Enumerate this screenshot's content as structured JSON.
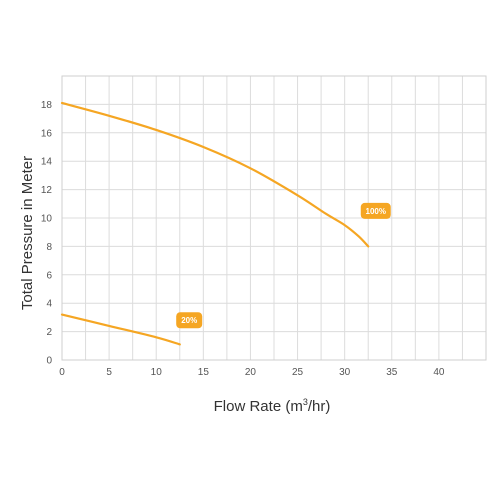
{
  "chart_data": {
    "type": "line",
    "title": "",
    "xlabel": "Flow Rate (m",
    "xlabel_superscript": "3",
    "xlabel_suffix": "/hr)",
    "ylabel": "Total Pressure in Meter",
    "xlim": [
      0,
      45
    ],
    "ylim": [
      0,
      20
    ],
    "xticks": [
      0,
      5,
      10,
      15,
      20,
      25,
      30,
      35,
      40
    ],
    "yticks": [
      0,
      2,
      4,
      6,
      8,
      10,
      12,
      14,
      16,
      18
    ],
    "x_grid_step": 2.5,
    "grid": true,
    "legend": "none",
    "series": [
      {
        "label": "100%",
        "color": "#F5A623",
        "x": [
          0,
          5,
          10,
          15,
          20,
          25,
          28,
          30,
          31.5,
          32.5
        ],
        "y": [
          18.1,
          17.2,
          16.2,
          15.0,
          13.5,
          11.6,
          10.3,
          9.5,
          8.7,
          8.0
        ],
        "label_at": [
          33.3,
          10.5
        ]
      },
      {
        "label": "20%",
        "color": "#F5A623",
        "x": [
          0,
          5,
          10,
          12.5
        ],
        "y": [
          3.2,
          2.4,
          1.6,
          1.1
        ],
        "label_at": [
          13.5,
          2.8
        ]
      }
    ]
  }
}
